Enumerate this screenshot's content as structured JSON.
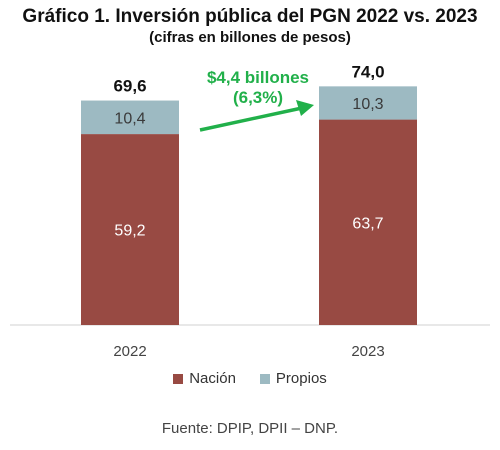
{
  "title": "Gráfico 1. Inversión pública del PGN 2022 vs. 2023",
  "subtitle": "(cifras en billones de pesos)",
  "source": "Fuente: DPIP, DPII – DNP.",
  "annotation": {
    "line1": "$4,4 billones",
    "line2": "(6,3%)",
    "color": "#21b04a"
  },
  "chart_data": {
    "type": "bar",
    "stacked": true,
    "categories": [
      "2022",
      "2023"
    ],
    "series": [
      {
        "name": "Nación",
        "color": "#984a43",
        "values": [
          59.2,
          63.7
        ],
        "labels": [
          "59,2",
          "63,7"
        ]
      },
      {
        "name": "Propios",
        "color": "#9dbac2",
        "values": [
          10.4,
          10.3
        ],
        "labels": [
          "10,4",
          "10,3"
        ]
      }
    ],
    "totals": [
      69.6,
      74.0
    ],
    "total_labels": [
      "69,6",
      "74,0"
    ],
    "ylim": [
      0,
      80
    ],
    "grid": false,
    "legend": "bottom"
  }
}
